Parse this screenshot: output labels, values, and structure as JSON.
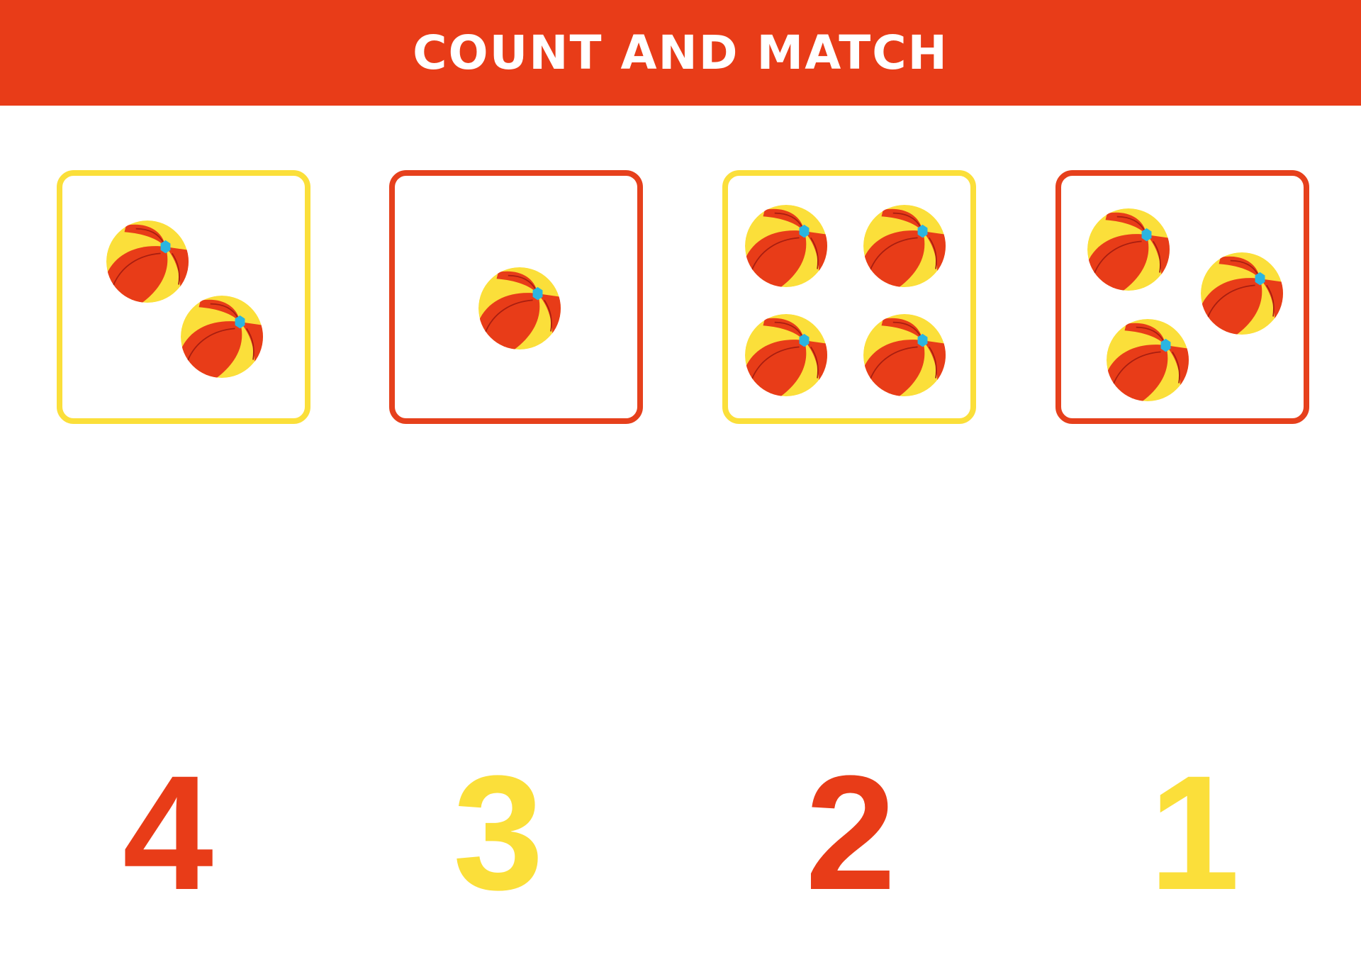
{
  "header": {
    "title": "COUNT AND MATCH"
  },
  "colors": {
    "red": "#e83c18",
    "yellow": "#fbdf3a",
    "blue": "#2bb5e0",
    "white": "#ffffff"
  },
  "boxes": [
    {
      "border_color": "yellow",
      "ball_count": 2
    },
    {
      "border_color": "red",
      "ball_count": 1
    },
    {
      "border_color": "yellow",
      "ball_count": 4
    },
    {
      "border_color": "red",
      "ball_count": 3
    }
  ],
  "numbers": [
    {
      "label": "4",
      "color": "red"
    },
    {
      "label": "3",
      "color": "yellow"
    },
    {
      "label": "2",
      "color": "red"
    },
    {
      "label": "1",
      "color": "yellow"
    }
  ],
  "icon": "beach-ball-icon"
}
